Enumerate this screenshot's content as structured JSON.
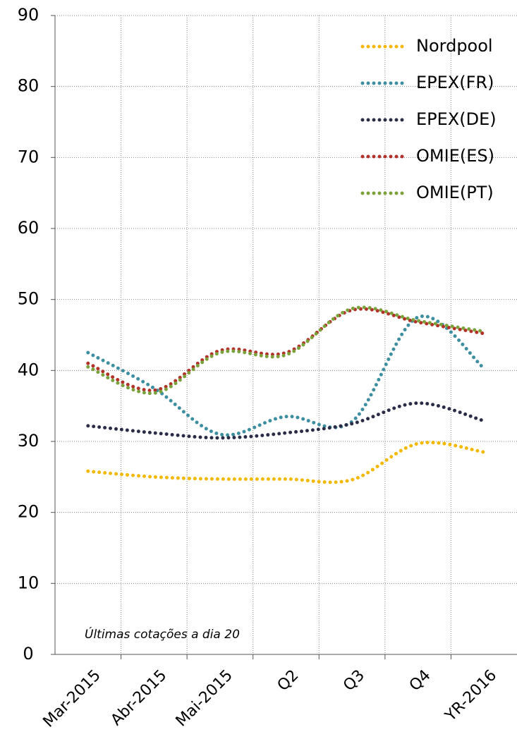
{
  "chart_data": {
    "type": "line",
    "categories": [
      "Mar-2015",
      "Abr-2015",
      "Mai-2015",
      "Q2",
      "Q3",
      "Q4",
      "YR-2016"
    ],
    "series": [
      {
        "name": "Nordpool",
        "color": "#f5b800",
        "values": [
          25.8,
          25.0,
          24.7,
          24.7,
          24.6,
          29.7,
          28.5
        ]
      },
      {
        "name": "EPEX(FR)",
        "color": "#3d8fa0",
        "values": [
          42.5,
          37.5,
          31.0,
          33.5,
          32.8,
          47.5,
          40.3
        ]
      },
      {
        "name": "EPEX(DE)",
        "color": "#2b2d48",
        "values": [
          32.2,
          31.2,
          30.5,
          31.2,
          32.5,
          35.4,
          32.9
        ]
      },
      {
        "name": "OMIE(ES)",
        "color": "#b2322a",
        "values": [
          41.0,
          37.2,
          42.8,
          42.5,
          48.5,
          46.8,
          45.2
        ]
      },
      {
        "name": "OMIE(PT)",
        "color": "#7aa23a",
        "values": [
          40.5,
          36.8,
          42.5,
          42.2,
          48.7,
          47.0,
          45.5
        ]
      }
    ],
    "ylim": [
      0,
      90
    ],
    "yticks": [
      0,
      10,
      20,
      30,
      40,
      50,
      60,
      70,
      80,
      90
    ],
    "grid": true,
    "legend": "top-right",
    "annotation": "Últimas cotações a dia 20"
  }
}
